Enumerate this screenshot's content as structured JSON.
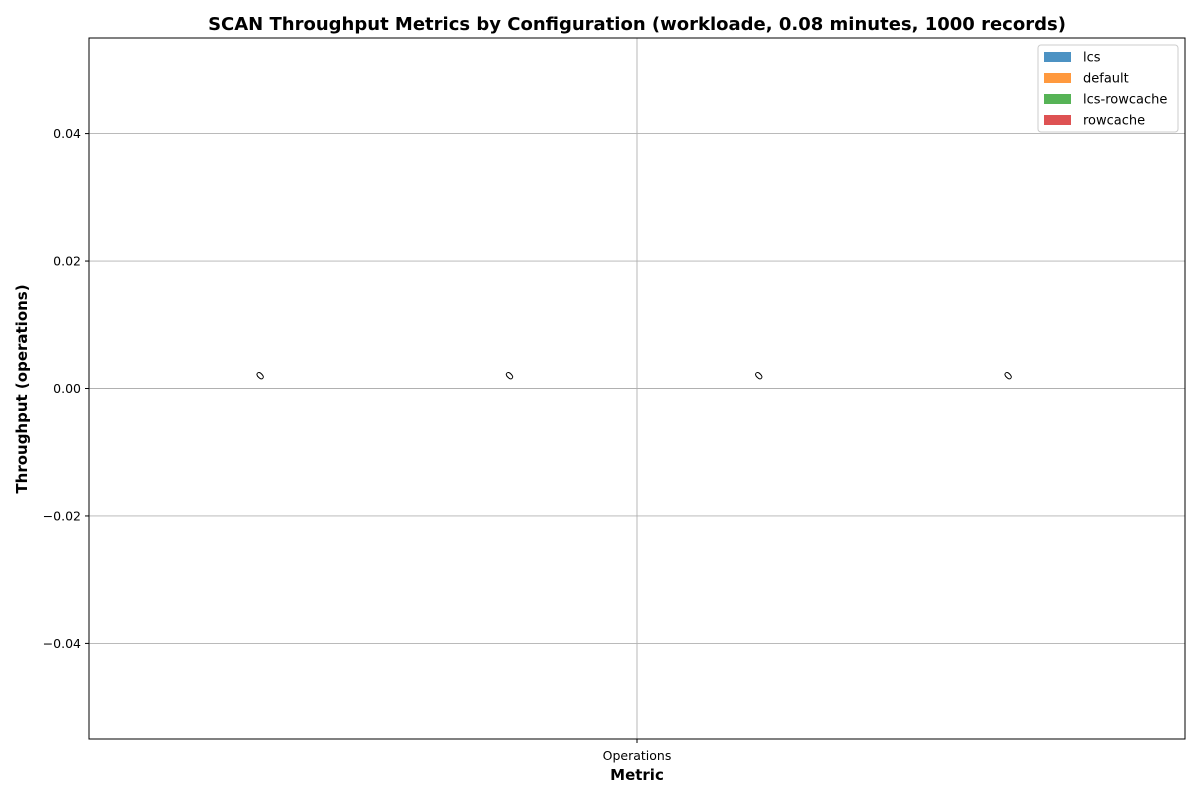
{
  "chart_data": {
    "type": "bar",
    "title": "SCAN Throughput Metrics by Configuration (workloade, 0.08 minutes, 1000 records)",
    "xlabel": "Metric",
    "ylabel": "Throughput (operations)",
    "categories": [
      "Operations"
    ],
    "series": [
      {
        "name": "lcs",
        "values": [
          0
        ],
        "color": "#1f77b4"
      },
      {
        "name": "default",
        "values": [
          0
        ],
        "color": "#ff7f0e"
      },
      {
        "name": "lcs-rowcache",
        "values": [
          0
        ],
        "color": "#2ca02c"
      },
      {
        "name": "rowcache",
        "values": [
          0
        ],
        "color": "#d62728"
      }
    ],
    "data_labels": [
      "0",
      "0",
      "0",
      "0"
    ],
    "ylim": [
      -0.055,
      0.055
    ],
    "yticks": [
      -0.04,
      -0.02,
      0.0,
      0.02,
      0.04
    ],
    "ytick_labels": [
      "−0.04",
      "−0.02",
      "0.00",
      "0.02",
      "0.04"
    ],
    "grid": true,
    "legend_position": "top-right"
  }
}
